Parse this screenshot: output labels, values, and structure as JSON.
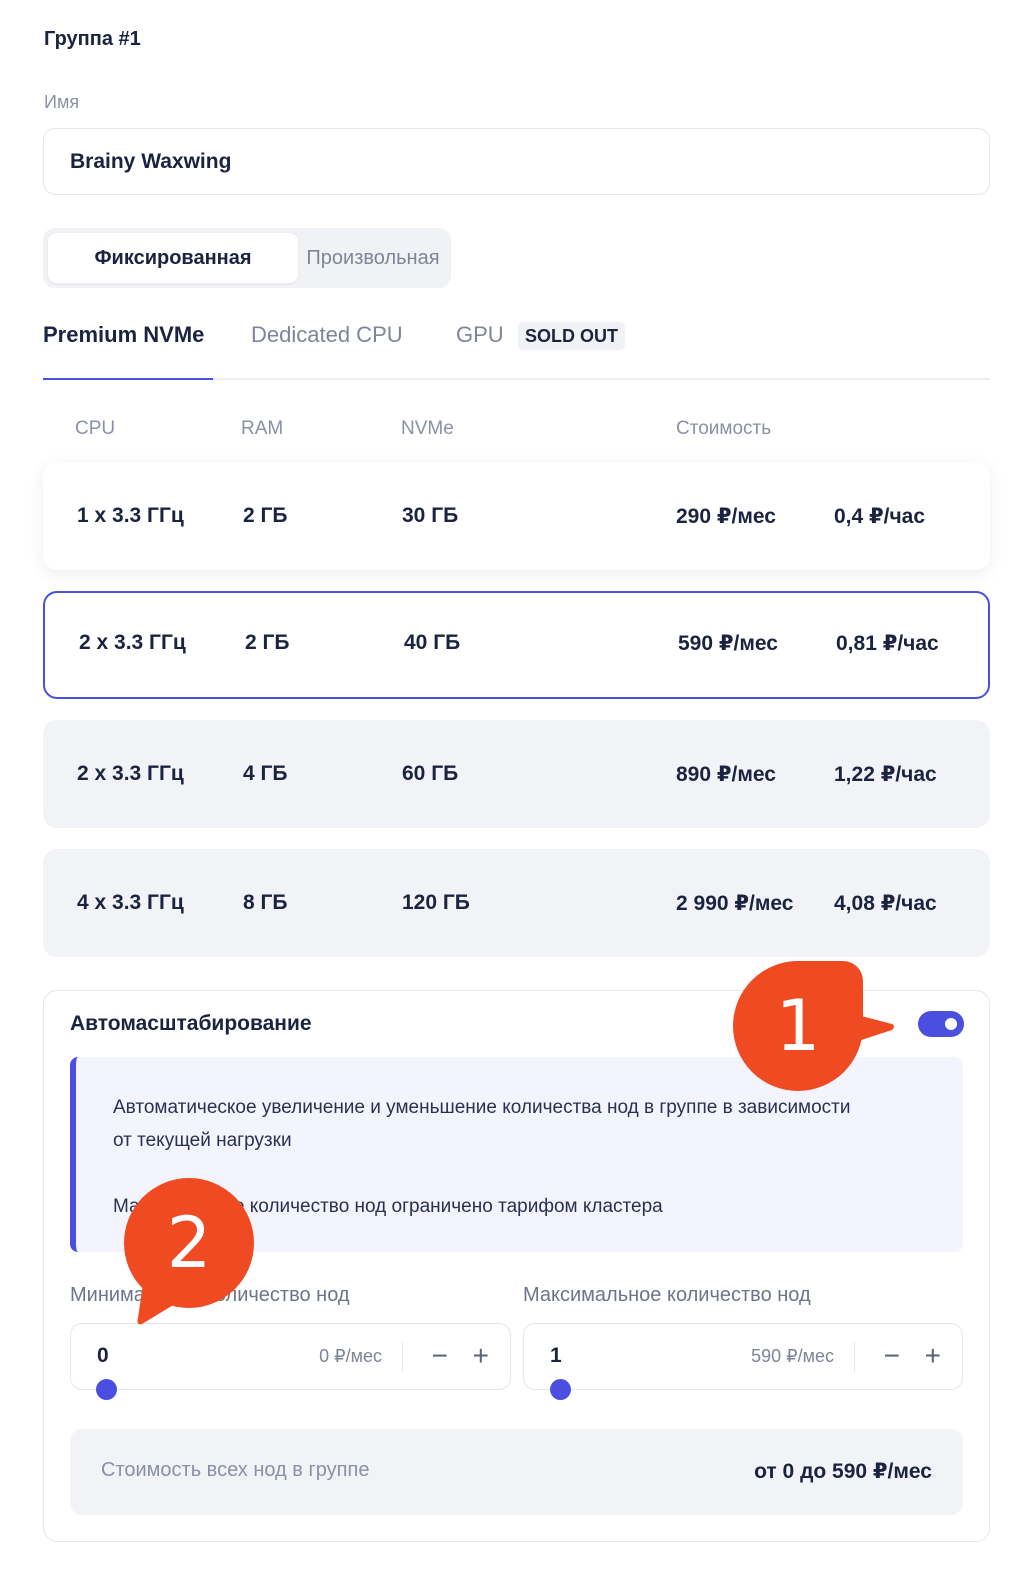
{
  "group": {
    "title": "Группа #1"
  },
  "name_field": {
    "label": "Имя",
    "value": "Brainy Waxwing"
  },
  "mode_switch": {
    "options": [
      "Фиксированная",
      "Произвольная"
    ],
    "selected": "Фиксированная"
  },
  "tabs": [
    {
      "label": "Premium NVMe",
      "active": true
    },
    {
      "label": "Dedicated CPU",
      "active": false
    },
    {
      "label": "GPU",
      "active": false,
      "badge": "SOLD OUT"
    }
  ],
  "table": {
    "headers": [
      "CPU",
      "RAM",
      "NVMe",
      "Стоимость"
    ],
    "rows": [
      {
        "cpu": "1 x 3.3 ГГц",
        "ram": "2 ГБ",
        "nvme": "30 ГБ",
        "month": "290 ₽/мес",
        "hour": "0,4 ₽/час"
      },
      {
        "cpu": "2 x 3.3 ГГц",
        "ram": "2 ГБ",
        "nvme": "40 ГБ",
        "month": "590 ₽/мес",
        "hour": "0,81 ₽/час",
        "selected": true
      },
      {
        "cpu": "2 x 3.3 ГГц",
        "ram": "4 ГБ",
        "nvme": "60 ГБ",
        "month": "890 ₽/мес",
        "hour": "1,22 ₽/час"
      },
      {
        "cpu": "4 x 3.3 ГГц",
        "ram": "8 ГБ",
        "nvme": "120 ГБ",
        "month": "2 990 ₽/мес",
        "hour": "4,08 ₽/час"
      }
    ]
  },
  "autoscaling": {
    "title": "Автомасштабирование",
    "enabled": true,
    "info_line1": "Автоматическое увеличение и уменьшение количества нод в группе в зависимости от текущей нагрузки",
    "info_line2": "Максимальное количество нод ограничено тарифом кластера",
    "min": {
      "label": "Минимальное количество нод",
      "value": "0",
      "price": "0 ₽/мес",
      "minus": "−",
      "plus": "+"
    },
    "max": {
      "label": "Максимальное количество нод",
      "value": "1",
      "price": "590 ₽/мес",
      "minus": "−",
      "plus": "+"
    },
    "total_label": "Стоимость всех нод в группе",
    "total_value": "от 0 до 590 ₽/мес"
  },
  "annotations": {
    "marker1": "1",
    "marker2": "2"
  },
  "colors": {
    "accent": "#4b4fe0",
    "marker": "#f04a23",
    "row_bg": "#f2f3f6"
  }
}
